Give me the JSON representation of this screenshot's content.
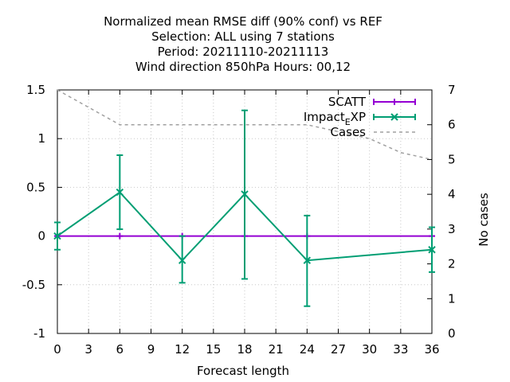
{
  "chart_data": {
    "type": "line",
    "title_lines": [
      "Normalized mean RMSE diff (90% conf) vs REF",
      "Selection: ALL using     7 stations",
      "Period: 20211110-20211113",
      "Wind direction 850hPa   Hours:  00,12"
    ],
    "xlabel": "Forecast length",
    "ylabel": "",
    "y2label": "No cases",
    "xlim": [
      0,
      36
    ],
    "ylim": [
      -1,
      1.5
    ],
    "y2lim": [
      0,
      7
    ],
    "xticks": [
      "0",
      "3",
      "6",
      "9",
      "12",
      "15",
      "18",
      "21",
      "24",
      "27",
      "30",
      "33",
      "36"
    ],
    "yticks": [
      "-1",
      "-0.5",
      "0",
      "0.5",
      "1",
      "1.5"
    ],
    "y2ticks": [
      "0",
      "1",
      "2",
      "3",
      "4",
      "5",
      "6",
      "7"
    ],
    "legend_position": "top-right",
    "series": [
      {
        "name": "SCATT",
        "axis": "y1",
        "color": "#9400d3",
        "x": [
          0,
          6,
          12,
          18,
          24,
          36
        ],
        "y": [
          0,
          0,
          0,
          0,
          0,
          0
        ],
        "err_low": [
          0,
          0,
          0,
          0,
          0,
          0
        ],
        "err_high": [
          0,
          0,
          0,
          0,
          0,
          0
        ]
      },
      {
        "name": "Impact_EXP",
        "legend_main": "Impact",
        "legend_sub": "E",
        "legend_tail": "XP",
        "axis": "y1",
        "color": "#009e73",
        "x": [
          0,
          6,
          12,
          18,
          24,
          36
        ],
        "y": [
          0,
          0.45,
          -0.25,
          0.43,
          -0.25,
          -0.14
        ],
        "err_low": [
          -0.14,
          0.07,
          -0.48,
          -0.44,
          -0.72,
          -0.37
        ],
        "err_high": [
          0.14,
          0.83,
          0,
          1.29,
          0.21,
          0.09
        ]
      },
      {
        "name": "Cases",
        "axis": "y2",
        "color": "#a0a0a0",
        "dashed": true,
        "x": [
          0,
          6,
          12,
          18,
          24,
          30,
          33,
          36
        ],
        "y": [
          7,
          6,
          6,
          6,
          6,
          5.6,
          5.2,
          5
        ]
      }
    ]
  }
}
